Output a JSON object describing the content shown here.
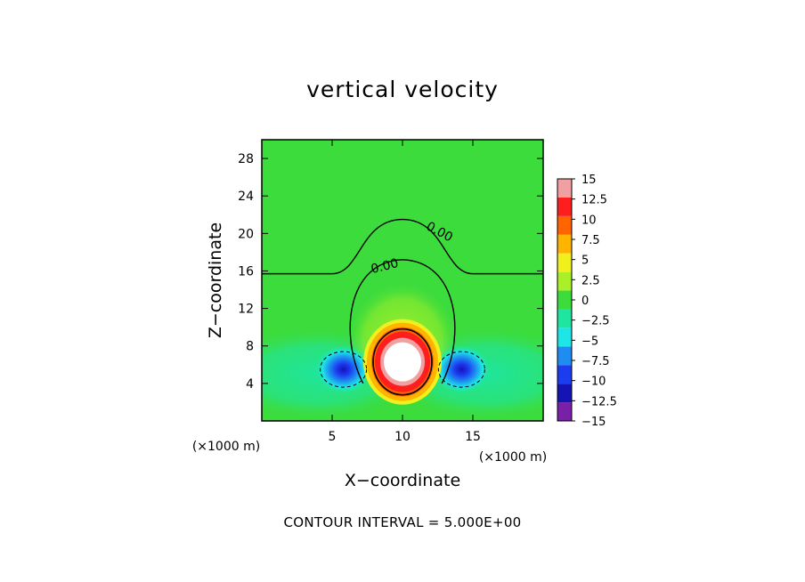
{
  "chart_data": {
    "type": "heatmap",
    "title": "vertical velocity",
    "xlabel": "X−coordinate",
    "ylabel": "Z−coordinate",
    "x_unit_label_left": "(×1000 m)",
    "x_unit_label_right": "(×1000 m)",
    "xlim": [
      0,
      20
    ],
    "ylim": [
      0,
      30
    ],
    "x_ticks": [
      5,
      10,
      15
    ],
    "x_tick_labels": [
      "5",
      "10",
      "15"
    ],
    "y_ticks": [
      4,
      8,
      12,
      16,
      20,
      24,
      28
    ],
    "y_tick_labels": [
      "4",
      "8",
      "12",
      "16",
      "20",
      "24",
      "28"
    ],
    "colorbar": {
      "levels": [
        -15,
        -12.5,
        -10,
        -7.5,
        -5,
        -2.5,
        0,
        2.5,
        5,
        7.5,
        10,
        12.5,
        15
      ],
      "labels": [
        "15",
        "12.5",
        "10",
        "7.5",
        "5",
        "2.5",
        "0",
        "−2.5",
        "−5",
        "−7.5",
        "−10",
        "−12.5",
        "−15"
      ],
      "colors": [
        "#7a1fa8",
        "#1414b4",
        "#1c3cf0",
        "#1e8cf0",
        "#1ee6e6",
        "#1ee6a0",
        "#3cdc3c",
        "#aaf028",
        "#f0f01e",
        "#ffb400",
        "#ff6400",
        "#ff1e1e",
        "#f0a0a0"
      ]
    },
    "contour_labels": [
      "0.00",
      "0.00"
    ],
    "contour_interval": "CONTOUR INTERVAL = 5.000E+00",
    "updraft_center": {
      "x": 10,
      "z": 6,
      "max_value": 15
    },
    "downdraft_centers": [
      {
        "x": 5.8,
        "z": 5.5,
        "min_value": -10
      },
      {
        "x": 14.2,
        "z": 5.5,
        "min_value": -10
      }
    ]
  }
}
